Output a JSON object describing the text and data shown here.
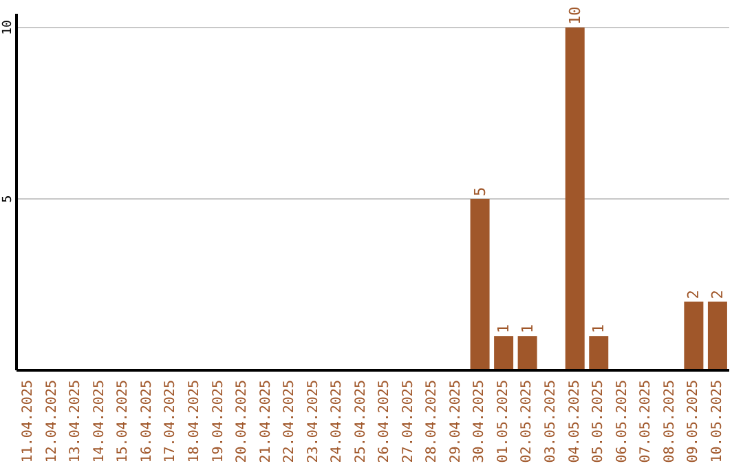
{
  "chart_data": {
    "type": "bar",
    "categories": [
      "11.04.2025",
      "12.04.2025",
      "13.04.2025",
      "14.04.2025",
      "15.04.2025",
      "16.04.2025",
      "17.04.2025",
      "18.04.2025",
      "19.04.2025",
      "20.04.2025",
      "21.04.2025",
      "22.04.2025",
      "23.04.2025",
      "24.04.2025",
      "25.04.2025",
      "26.04.2025",
      "27.04.2025",
      "28.04.2025",
      "29.04.2025",
      "30.04.2025",
      "01.05.2025",
      "02.05.2025",
      "03.05.2025",
      "04.05.2025",
      "05.05.2025",
      "06.05.2025",
      "07.05.2025",
      "08.05.2025",
      "09.05.2025",
      "10.05.2025"
    ],
    "values": [
      0,
      0,
      0,
      0,
      0,
      0,
      0,
      0,
      0,
      0,
      0,
      0,
      0,
      0,
      0,
      0,
      0,
      0,
      0,
      5,
      1,
      1,
      0,
      10,
      1,
      0,
      0,
      0,
      2,
      2
    ],
    "value_labels": [
      null,
      null,
      null,
      null,
      null,
      null,
      null,
      null,
      null,
      null,
      null,
      null,
      null,
      null,
      null,
      null,
      null,
      null,
      null,
      "5",
      "1",
      "1",
      null,
      "10",
      "1",
      null,
      null,
      null,
      "2",
      "2"
    ],
    "color": "#a0572a",
    "ylim": [
      0,
      10.4
    ],
    "yticks": [
      5,
      10
    ],
    "grid": "y"
  }
}
